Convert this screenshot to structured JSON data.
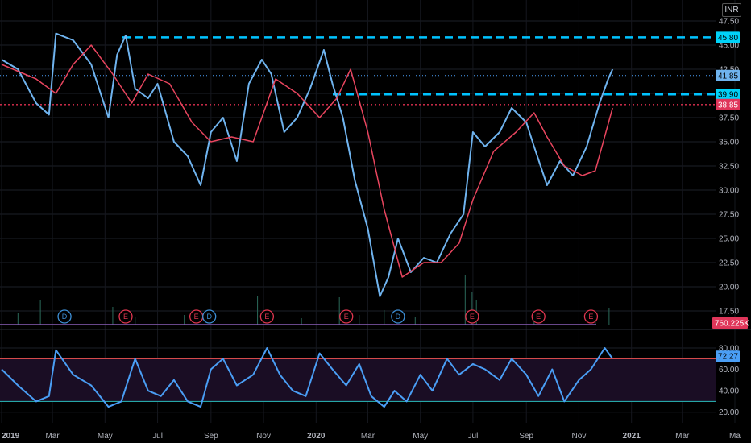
{
  "chart_data": [
    {
      "type": "line",
      "currency": "INR",
      "ylim": [
        16.0,
        48.5
      ],
      "y_ticks": [
        "17.50",
        "20.00",
        "22.50",
        "25.00",
        "27.50",
        "30.00",
        "32.50",
        "35.00",
        "37.50",
        "40.00",
        "42.50",
        "45.00",
        "47.50"
      ],
      "x_ticks": [
        "2019",
        "Mar",
        "May",
        "Jul",
        "Sep",
        "Nov",
        "2020",
        "Mar",
        "May",
        "Jul",
        "Sep",
        "Nov",
        "2021",
        "Mar",
        "Ma"
      ],
      "series": [
        {
          "color": "#6fb3ee",
          "x": [
            "2019-01-01",
            "2019-01-20",
            "2019-02-10",
            "2019-02-25",
            "2019-03-05",
            "2019-03-25",
            "2019-04-15",
            "2019-05-05",
            "2019-05-15",
            "2019-05-25",
            "2019-06-05",
            "2019-06-20",
            "2019-07-01",
            "2019-07-20",
            "2019-08-05",
            "2019-08-20",
            "2019-09-01",
            "2019-09-15",
            "2019-10-01",
            "2019-10-15",
            "2019-10-30",
            "2019-11-10",
            "2019-11-25",
            "2019-12-10",
            "2019-12-25",
            "2020-01-10",
            "2020-01-20",
            "2020-02-01",
            "2020-02-15",
            "2020-03-01",
            "2020-03-15",
            "2020-03-25",
            "2020-04-05",
            "2020-04-20",
            "2020-05-05",
            "2020-05-20",
            "2020-06-05",
            "2020-06-20",
            "2020-07-01",
            "2020-07-15",
            "2020-08-01",
            "2020-08-15",
            "2020-09-01",
            "2020-09-10",
            "2020-09-25",
            "2020-10-10",
            "2020-10-25",
            "2020-11-10",
            "2020-11-25",
            "2020-12-05",
            "2020-12-10"
          ],
          "values": [
            43.5,
            42.5,
            39.0,
            37.8,
            46.2,
            45.5,
            43.0,
            37.5,
            44.0,
            46.0,
            40.5,
            39.5,
            41.0,
            35.0,
            33.5,
            30.5,
            36.0,
            37.5,
            33.0,
            41.0,
            43.5,
            42.0,
            36.0,
            37.5,
            40.5,
            44.5,
            41.0,
            37.5,
            31.0,
            26.0,
            19.0,
            21.0,
            25.0,
            21.5,
            23.0,
            22.5,
            25.5,
            27.5,
            36.0,
            34.5,
            36.0,
            38.5,
            37.0,
            34.5,
            30.5,
            33.0,
            31.5,
            34.5,
            39.0,
            41.5,
            42.5
          ]
        },
        {
          "color": "#e8455e",
          "x": [
            "2019-01-01",
            "2019-02-10",
            "2019-03-05",
            "2019-03-25",
            "2019-04-15",
            "2019-05-10",
            "2019-06-01",
            "2019-06-20",
            "2019-07-15",
            "2019-08-10",
            "2019-09-01",
            "2019-09-25",
            "2019-10-20",
            "2019-11-15",
            "2019-12-10",
            "2020-01-05",
            "2020-01-25",
            "2020-02-10",
            "2020-03-01",
            "2020-03-20",
            "2020-04-10",
            "2020-05-05",
            "2020-05-25",
            "2020-06-15",
            "2020-07-01",
            "2020-07-25",
            "2020-08-20",
            "2020-09-10",
            "2020-09-25",
            "2020-10-15",
            "2020-11-05",
            "2020-11-20",
            "2020-12-10"
          ],
          "values": [
            43.0,
            41.5,
            40.0,
            43.0,
            45.0,
            42.0,
            39.0,
            42.0,
            41.0,
            37.0,
            35.0,
            35.5,
            35.0,
            41.5,
            40.0,
            37.5,
            39.5,
            42.5,
            36.0,
            28.0,
            21.0,
            22.5,
            22.5,
            24.5,
            29.0,
            34.0,
            36.0,
            38.0,
            35.5,
            32.5,
            31.5,
            32.0,
            38.5
          ]
        }
      ],
      "price_lines": [
        {
          "value": 45.8,
          "label": "45.80",
          "color": "#00c3ff",
          "style": "dashed"
        },
        {
          "value": 39.9,
          "label": "39.90",
          "color": "#00c3ff",
          "style": "dashed"
        },
        {
          "value": 38.85,
          "label": "38.85",
          "color": "#e03050",
          "style": "dotted"
        }
      ],
      "last_price_label": "41.85",
      "volume_label": "760.225K",
      "events": [
        {
          "letter": "D",
          "date": "2019-03-15",
          "color": "#3d8fd6"
        },
        {
          "letter": "E",
          "date": "2019-05-25",
          "color": "#e0364f"
        },
        {
          "letter": "E",
          "date": "2019-08-15",
          "color": "#e0364f"
        },
        {
          "letter": "D",
          "date": "2019-08-30",
          "color": "#3d8fd6"
        },
        {
          "letter": "E",
          "date": "2019-11-05",
          "color": "#e0364f"
        },
        {
          "letter": "E",
          "date": "2020-02-05",
          "color": "#e0364f"
        },
        {
          "letter": "D",
          "date": "2020-04-05",
          "color": "#3d8fd6"
        },
        {
          "letter": "E",
          "date": "2020-06-30",
          "color": "#e0364f"
        },
        {
          "letter": "E",
          "date": "2020-09-15",
          "color": "#e0364f"
        },
        {
          "letter": "E",
          "date": "2020-11-15",
          "color": "#e0364f"
        }
      ],
      "grid": true
    },
    {
      "type": "line",
      "ylim": [
        10,
        89
      ],
      "y_ticks": [
        "20.00",
        "40.00",
        "60.00",
        "80.00"
      ],
      "overbought": 70,
      "oversold": 30,
      "current_label": "72.27",
      "series": [
        {
          "color": "#4a9ef5",
          "x": [
            "2019-01-01",
            "2019-01-20",
            "2019-02-10",
            "2019-02-25",
            "2019-03-05",
            "2019-03-25",
            "2019-04-15",
            "2019-05-05",
            "2019-05-20",
            "2019-06-05",
            "2019-06-20",
            "2019-07-05",
            "2019-07-20",
            "2019-08-05",
            "2019-08-20",
            "2019-09-01",
            "2019-09-15",
            "2019-10-01",
            "2019-10-20",
            "2019-11-05",
            "2019-11-20",
            "2019-12-05",
            "2019-12-20",
            "2020-01-05",
            "2020-01-20",
            "2020-02-05",
            "2020-02-20",
            "2020-03-05",
            "2020-03-20",
            "2020-04-01",
            "2020-04-15",
            "2020-05-01",
            "2020-05-15",
            "2020-06-01",
            "2020-06-15",
            "2020-07-01",
            "2020-07-15",
            "2020-08-01",
            "2020-08-15",
            "2020-09-01",
            "2020-09-15",
            "2020-10-01",
            "2020-10-15",
            "2020-11-01",
            "2020-11-15",
            "2020-12-01",
            "2020-12-10"
          ],
          "values": [
            60,
            45,
            30,
            35,
            78,
            55,
            45,
            25,
            30,
            70,
            40,
            35,
            50,
            30,
            25,
            60,
            70,
            45,
            55,
            80,
            55,
            40,
            35,
            75,
            60,
            45,
            65,
            35,
            25,
            40,
            30,
            55,
            40,
            70,
            55,
            65,
            60,
            50,
            70,
            55,
            35,
            60,
            30,
            50,
            60,
            80,
            70
          ]
        }
      ]
    }
  ]
}
